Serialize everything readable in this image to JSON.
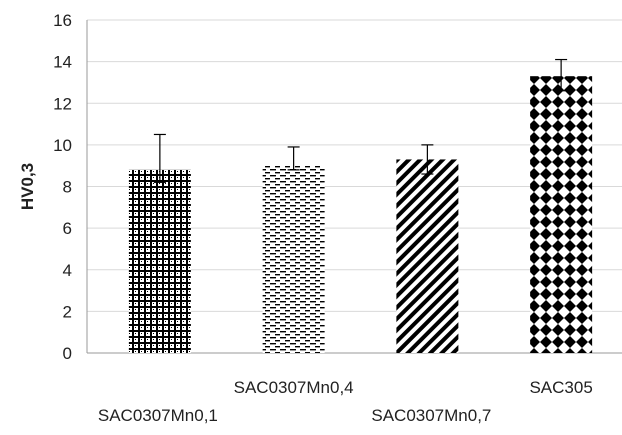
{
  "chart_data": {
    "type": "bar",
    "categories": [
      "SAC0307Mn0,1",
      "SAC0307Mn0,4",
      "SAC0307Mn0,7",
      "SAC305"
    ],
    "values": [
      8.8,
      9.0,
      9.3,
      13.3
    ],
    "error_bars": [
      {
        "low": 8.2,
        "high": 10.5
      },
      {
        "low": 8.8,
        "high": 9.9
      },
      {
        "low": 8.6,
        "high": 10.0
      },
      {
        "low": 12.6,
        "high": 14.1
      }
    ],
    "patterns": [
      "grid-dots",
      "dashes",
      "diagonal-stripes",
      "diamonds"
    ],
    "xlabel": "",
    "ylabel": "HV0,3",
    "ylim": [
      0,
      16
    ],
    "yticks": [
      "0",
      "2",
      "4",
      "6",
      "8",
      "10",
      "12",
      "14",
      "16"
    ],
    "grid": true,
    "legend": "none",
    "colors": {
      "bar": "#000000",
      "grid": "#d9d9d9",
      "background": "#ffffff"
    }
  }
}
